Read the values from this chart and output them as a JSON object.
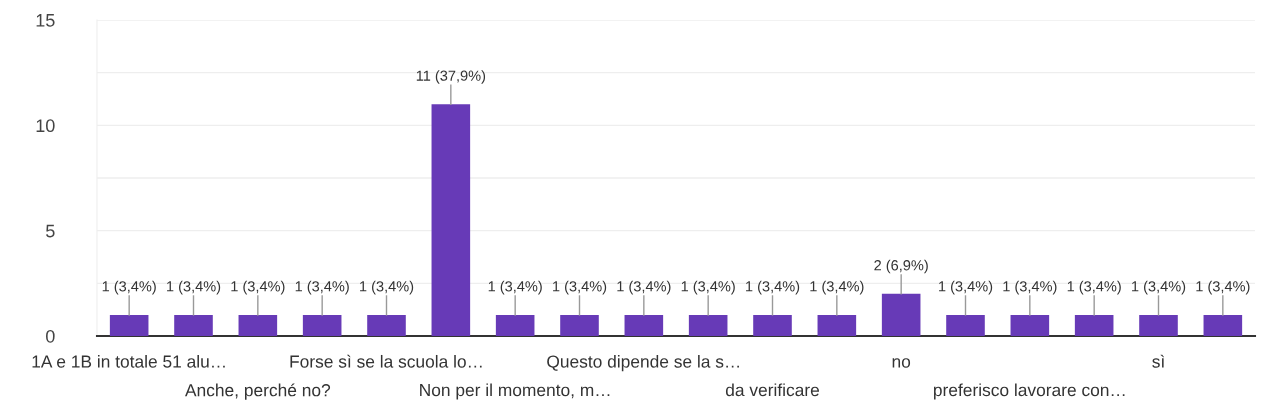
{
  "chart_data": {
    "type": "bar",
    "categories": [
      "1A e 1B in totale 51 alu…",
      null,
      "Anche, perché no?",
      null,
      "Forse sì se la scuola lo…",
      null,
      "Non per il momento, m…",
      null,
      "Questo dipende se la s…",
      null,
      "da verificare",
      null,
      "no",
      null,
      "preferisco lavorare con…",
      null,
      "sì",
      null
    ],
    "values": [
      1,
      1,
      1,
      1,
      1,
      11,
      1,
      1,
      1,
      1,
      1,
      1,
      2,
      1,
      1,
      1,
      1,
      1
    ],
    "value_labels": [
      "1 (3,4%)",
      "1 (3,4%)",
      "1 (3,4%)",
      "1 (3,4%)",
      "1 (3,4%)",
      "11 (37,9%)",
      "1 (3,4%)",
      "1 (3,4%)",
      "1 (3,4%)",
      "1 (3,4%)",
      "1 (3,4%)",
      "1 (3,4%)",
      "2 (6,9%)",
      "1 (3,4%)",
      "1 (3,4%)",
      "1 (3,4%)",
      "1 (3,4%)",
      "1 (3,4%)"
    ],
    "color": "#673ab7",
    "ylim": [
      0,
      15
    ],
    "yticks": [
      0,
      {
        "value": 2.5,
        "label": null
      },
      5,
      {
        "value": 7.5,
        "label": null
      },
      10,
      {
        "value": 12.5,
        "label": null
      },
      15
    ],
    "grid": "y"
  }
}
